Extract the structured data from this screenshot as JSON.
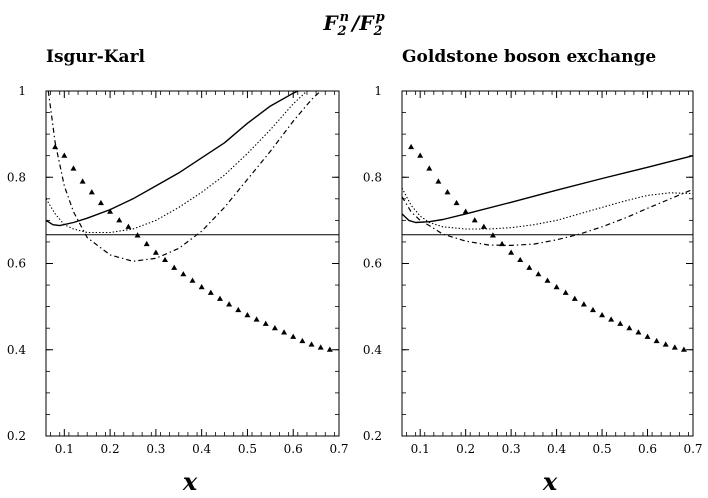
{
  "suptitle": {
    "main": "F",
    "sub1": "2",
    "sup1": "n",
    "sep": "/",
    "main2": "F",
    "sub2": "2",
    "sup2": "p"
  },
  "chart_data": [
    {
      "type": "line",
      "title": "Isgur-Karl",
      "xlabel": "x",
      "ylabel": "",
      "xlim": [
        0.06,
        0.7
      ],
      "ylim": [
        0.2,
        1.0
      ],
      "xticks": [
        "0.1",
        "0.2",
        "0.3",
        "0.4",
        "0.5",
        "0.6",
        "0.7"
      ],
      "xtick_values": [
        0.1,
        0.2,
        0.3,
        0.4,
        0.5,
        0.6,
        0.7
      ],
      "yticks": [
        "0.2",
        "0.4",
        "0.6",
        "0.8",
        "1"
      ],
      "ytick_values": [
        0.2,
        0.4,
        0.6,
        0.8,
        1.0
      ],
      "series": [
        {
          "name": "solid",
          "style": "solid",
          "x": [
            0.06,
            0.075,
            0.09,
            0.12,
            0.15,
            0.2,
            0.25,
            0.3,
            0.35,
            0.4,
            0.45,
            0.5,
            0.55,
            0.6,
            0.61
          ],
          "y": [
            0.7,
            0.69,
            0.688,
            0.695,
            0.705,
            0.725,
            0.75,
            0.78,
            0.81,
            0.845,
            0.88,
            0.925,
            0.965,
            0.995,
            1.0
          ]
        },
        {
          "name": "dotted",
          "style": "dotted",
          "x": [
            0.06,
            0.08,
            0.1,
            0.12,
            0.15,
            0.2,
            0.25,
            0.3,
            0.35,
            0.4,
            0.45,
            0.5,
            0.55,
            0.6,
            0.63
          ],
          "y": [
            0.75,
            0.715,
            0.69,
            0.68,
            0.672,
            0.672,
            0.68,
            0.7,
            0.73,
            0.765,
            0.805,
            0.855,
            0.91,
            0.97,
            1.0
          ]
        },
        {
          "name": "dash-dot",
          "style": "dashdot",
          "x": [
            0.065,
            0.08,
            0.1,
            0.12,
            0.15,
            0.2,
            0.25,
            0.3,
            0.35,
            0.4,
            0.45,
            0.5,
            0.55,
            0.6,
            0.64,
            0.66
          ],
          "y": [
            1.0,
            0.88,
            0.78,
            0.72,
            0.66,
            0.62,
            0.605,
            0.612,
            0.635,
            0.675,
            0.73,
            0.795,
            0.86,
            0.93,
            0.98,
            1.0
          ]
        },
        {
          "name": "reference",
          "style": "solid-thin",
          "x": [
            0.06,
            0.7
          ],
          "y": [
            0.6667,
            0.6667
          ]
        },
        {
          "name": "triangles",
          "style": "marker",
          "x": [
            0.08,
            0.1,
            0.12,
            0.14,
            0.16,
            0.18,
            0.2,
            0.22,
            0.24,
            0.26,
            0.28,
            0.3,
            0.32,
            0.34,
            0.36,
            0.38,
            0.4,
            0.42,
            0.44,
            0.46,
            0.48,
            0.5,
            0.52,
            0.54,
            0.56,
            0.58,
            0.6,
            0.62,
            0.64,
            0.66,
            0.68
          ],
          "y": [
            0.87,
            0.85,
            0.82,
            0.79,
            0.765,
            0.74,
            0.72,
            0.7,
            0.685,
            0.665,
            0.645,
            0.625,
            0.608,
            0.59,
            0.575,
            0.56,
            0.545,
            0.532,
            0.518,
            0.505,
            0.492,
            0.48,
            0.47,
            0.46,
            0.45,
            0.44,
            0.43,
            0.42,
            0.412,
            0.405,
            0.4
          ]
        }
      ]
    },
    {
      "type": "line",
      "title": "Goldstone boson exchange",
      "xlabel": "x",
      "ylabel": "",
      "xlim": [
        0.06,
        0.7
      ],
      "ylim": [
        0.2,
        1.0
      ],
      "xticks": [
        "0.1",
        "0.2",
        "0.3",
        "0.4",
        "0.5",
        "0.6",
        "0.7"
      ],
      "xtick_values": [
        0.1,
        0.2,
        0.3,
        0.4,
        0.5,
        0.6,
        0.7
      ],
      "yticks": [
        "0.2",
        "0.4",
        "0.6",
        "0.8",
        "1"
      ],
      "ytick_values": [
        0.2,
        0.4,
        0.6,
        0.8,
        1.0
      ],
      "series": [
        {
          "name": "solid",
          "style": "solid",
          "x": [
            0.06,
            0.075,
            0.09,
            0.12,
            0.15,
            0.2,
            0.3,
            0.4,
            0.5,
            0.6,
            0.7
          ],
          "y": [
            0.715,
            0.7,
            0.695,
            0.697,
            0.702,
            0.715,
            0.742,
            0.77,
            0.797,
            0.823,
            0.85
          ]
        },
        {
          "name": "dotted",
          "style": "dotted",
          "x": [
            0.06,
            0.08,
            0.1,
            0.12,
            0.15,
            0.2,
            0.25,
            0.3,
            0.35,
            0.4,
            0.45,
            0.5,
            0.55,
            0.6,
            0.65,
            0.7
          ],
          "y": [
            0.775,
            0.735,
            0.71,
            0.695,
            0.685,
            0.68,
            0.68,
            0.683,
            0.69,
            0.7,
            0.715,
            0.73,
            0.745,
            0.758,
            0.764,
            0.762
          ]
        },
        {
          "name": "dash-dot",
          "style": "dashdot",
          "x": [
            0.06,
            0.08,
            0.1,
            0.12,
            0.15,
            0.2,
            0.25,
            0.3,
            0.35,
            0.4,
            0.45,
            0.5,
            0.55,
            0.6,
            0.65,
            0.7
          ],
          "y": [
            0.755,
            0.72,
            0.7,
            0.688,
            0.668,
            0.652,
            0.643,
            0.642,
            0.645,
            0.655,
            0.668,
            0.685,
            0.705,
            0.728,
            0.75,
            0.772
          ]
        },
        {
          "name": "reference",
          "style": "solid-thin",
          "x": [
            0.06,
            0.7
          ],
          "y": [
            0.6667,
            0.6667
          ]
        },
        {
          "name": "triangles",
          "style": "marker",
          "x": [
            0.08,
            0.1,
            0.12,
            0.14,
            0.16,
            0.18,
            0.2,
            0.22,
            0.24,
            0.26,
            0.28,
            0.3,
            0.32,
            0.34,
            0.36,
            0.38,
            0.4,
            0.42,
            0.44,
            0.46,
            0.48,
            0.5,
            0.52,
            0.54,
            0.56,
            0.58,
            0.6,
            0.62,
            0.64,
            0.66,
            0.68
          ],
          "y": [
            0.87,
            0.85,
            0.82,
            0.79,
            0.765,
            0.74,
            0.72,
            0.7,
            0.685,
            0.665,
            0.645,
            0.625,
            0.608,
            0.59,
            0.575,
            0.56,
            0.545,
            0.532,
            0.518,
            0.505,
            0.492,
            0.48,
            0.47,
            0.46,
            0.45,
            0.44,
            0.43,
            0.42,
            0.412,
            0.405,
            0.4
          ]
        }
      ]
    }
  ]
}
